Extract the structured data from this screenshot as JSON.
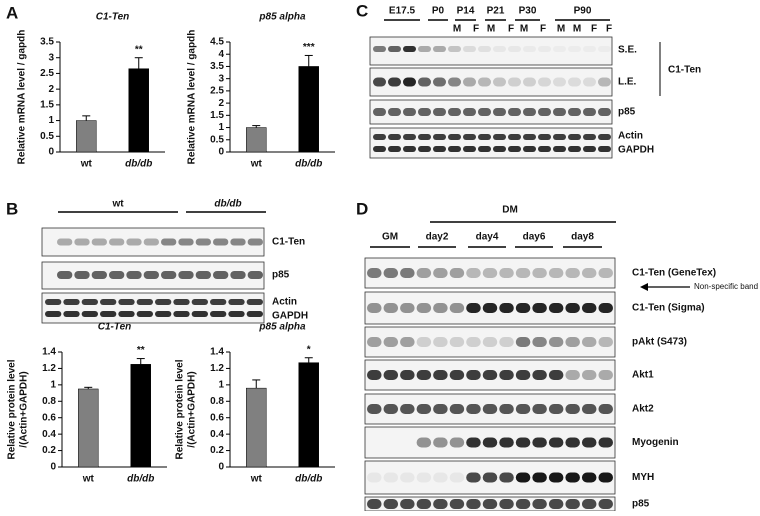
{
  "chart_data": [
    {
      "type": "bar",
      "title": "C1-Ten",
      "y_label": [
        "Relative mRNA level / gapdh"
      ],
      "categories": [
        "wt",
        "db/db"
      ],
      "values": [
        1.0,
        2.65
      ],
      "errors": [
        0.15,
        0.35
      ],
      "significance": [
        null,
        "**"
      ],
      "colors": [
        "#808080",
        "#000000"
      ],
      "ylim": [
        0,
        3.5
      ],
      "yticks": [
        0,
        0.5,
        1,
        1.5,
        2,
        2.5,
        3,
        3.5
      ]
    },
    {
      "type": "bar",
      "title": "p85 alpha",
      "y_label": [
        "Relative mRNA level / gapdh"
      ],
      "categories": [
        "wt",
        "db/db"
      ],
      "values": [
        1.0,
        3.5
      ],
      "errors": [
        0.08,
        0.45
      ],
      "significance": [
        null,
        "***"
      ],
      "colors": [
        "#808080",
        "#000000"
      ],
      "ylim": [
        0,
        4.5
      ],
      "yticks": [
        0,
        0.5,
        1,
        1.5,
        2,
        2.5,
        3,
        3.5,
        4,
        4.5
      ]
    },
    {
      "type": "bar",
      "title": "C1-Ten",
      "y_label": [
        "Relative protein level",
        "/(Actin+GAPDH)"
      ],
      "categories": [
        "wt",
        "db/db"
      ],
      "values": [
        0.95,
        1.25
      ],
      "errors": [
        0.02,
        0.07
      ],
      "significance": [
        null,
        "**"
      ],
      "colors": [
        "#808080",
        "#000000"
      ],
      "ylim": [
        0,
        1.4
      ],
      "yticks": [
        0,
        0.2,
        0.4,
        0.6,
        0.8,
        1,
        1.2,
        1.4
      ]
    },
    {
      "type": "bar",
      "title": "p85 alpha",
      "y_label": [
        "Relative protein level",
        "/(Actin+GAPDH)"
      ],
      "categories": [
        "wt",
        "db/db"
      ],
      "values": [
        0.96,
        1.27
      ],
      "errors": [
        0.1,
        0.06
      ],
      "significance": [
        null,
        "*"
      ],
      "colors": [
        "#808080",
        "#000000"
      ],
      "ylim": [
        0,
        1.4
      ],
      "yticks": [
        0,
        0.2,
        0.4,
        0.6,
        0.8,
        1,
        1.2,
        1.4
      ]
    }
  ],
  "panel_labels": [
    "A",
    "B",
    "C",
    "D"
  ],
  "panel_c": {
    "stages": [
      "E17.5",
      "P0",
      "P14",
      "P21",
      "P30",
      "P90"
    ],
    "sexes": [
      "M",
      "F",
      "M",
      "F",
      "M",
      "F",
      "M",
      "M",
      "F",
      "F"
    ],
    "rows": [
      "S.E.",
      "L.E.",
      "p85",
      "Actin",
      "GAPDH"
    ],
    "group_label": "C1-Ten"
  },
  "panel_b_blot": {
    "groups": [
      "wt",
      "db/db"
    ],
    "rows": [
      "C1-Ten",
      "p85",
      "Actin",
      "GAPDH"
    ]
  },
  "panel_d": {
    "group": "DM",
    "conditions": [
      "GM",
      "day2",
      "day4",
      "day6",
      "day8"
    ],
    "rows": [
      "C1-Ten (GeneTex)",
      "C1-Ten (Sigma)",
      "pAkt (S473)",
      "Akt1",
      "Akt2",
      "Myogenin",
      "MYH",
      "p85"
    ],
    "note": "Non-specific band"
  }
}
